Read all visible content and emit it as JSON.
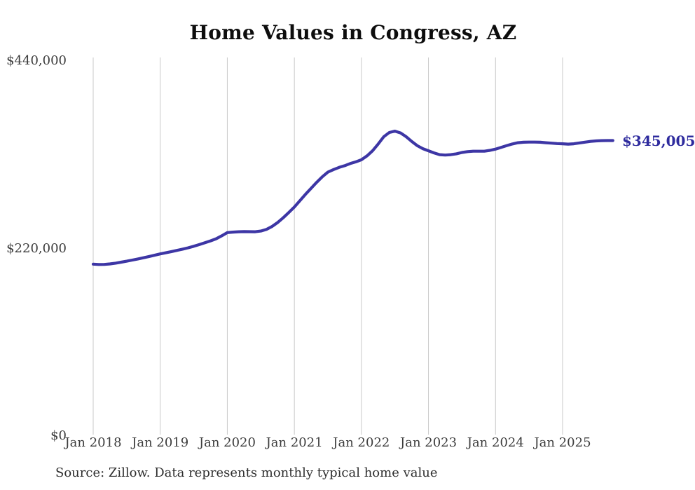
{
  "title": "Home Values in Congress, AZ",
  "source_note": "Source: Zillow. Data represents monthly typical home value",
  "colors": {
    "line": "#3d36a5",
    "end_label": "#2e2b9e",
    "gridline": "#c9c9c9",
    "axis_text": "#3d3d3d",
    "title_text": "#0d0d0d"
  },
  "chart_data": {
    "type": "line",
    "title": "Home Values in Congress, AZ",
    "series_name": "Monthly typical home value",
    "x_start_month": "Jan 2018",
    "x_end_month": "Oct 2025",
    "x_tick_labels": [
      "Jan 2018",
      "Jan 2019",
      "Jan 2020",
      "Jan 2021",
      "Jan 2022",
      "Jan 2023",
      "Jan 2024",
      "Jan 2025"
    ],
    "y_ticks": [
      {
        "label": "$0",
        "value": 0
      },
      {
        "label": "$220,000",
        "value": 220000
      },
      {
        "label": "$440,000",
        "value": 440000
      }
    ],
    "ylim": [
      0,
      440000
    ],
    "grid": "vertical-only",
    "legend": "none",
    "line_color": "#3d36a5",
    "end_label": "$345,005",
    "end_value": 345005,
    "monthly_values": [
      200000,
      199600,
      199700,
      200300,
      201200,
      202300,
      203500,
      204800,
      206100,
      207500,
      209000,
      210500,
      212000,
      213300,
      214700,
      216100,
      217600,
      219200,
      221000,
      223000,
      225100,
      227300,
      229800,
      233200,
      237000,
      237600,
      238000,
      238200,
      238100,
      238000,
      238800,
      240800,
      244200,
      248800,
      254400,
      260600,
      267000,
      274500,
      282000,
      289000,
      296000,
      302500,
      308000,
      311000,
      313500,
      315500,
      318000,
      320000,
      322500,
      327000,
      333000,
      341000,
      349500,
      354500,
      356000,
      354000,
      349500,
      344000,
      339000,
      335500,
      333000,
      330500,
      328500,
      328000,
      328500,
      329500,
      331000,
      332000,
      332500,
      332500,
      332500,
      333500,
      335000,
      337000,
      339000,
      341000,
      342500,
      343000,
      343200,
      343200,
      343000,
      342500,
      342000,
      341500,
      341200,
      340800,
      341200,
      342200,
      343100,
      344000,
      344600,
      344900,
      345000,
      345005
    ]
  }
}
